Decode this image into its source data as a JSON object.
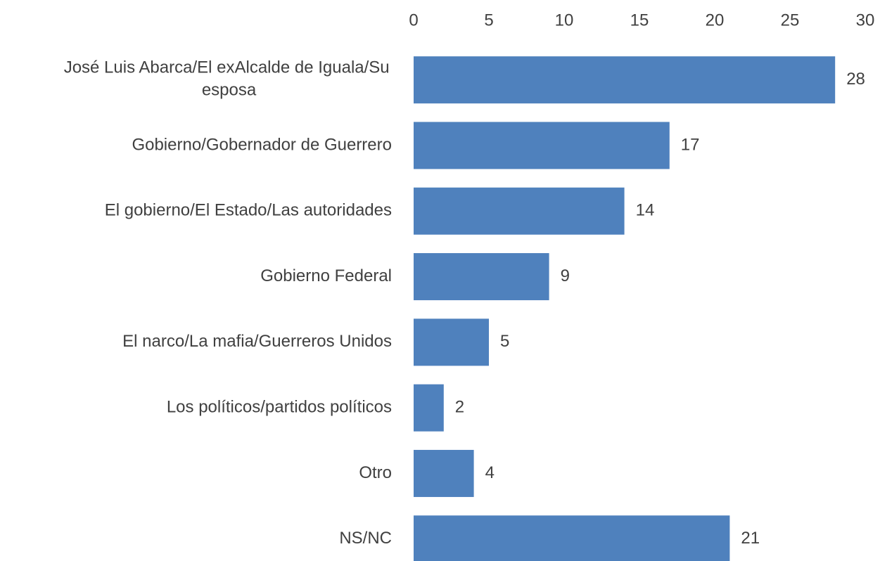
{
  "chart_data": {
    "type": "hbar",
    "categories": [
      "José Luis Abarca/El exAlcalde de Iguala/Su esposa",
      "Gobierno/Gobernador de Guerrero",
      "El gobierno/El Estado/Las autoridades",
      "Gobierno Federal",
      "El narco/La mafia/Guerreros Unidos",
      "Los políticos/partidos políticos",
      "Otro",
      "NS/NC"
    ],
    "values": [
      28,
      17,
      14,
      9,
      5,
      2,
      4,
      21
    ],
    "color": "#4f81bd",
    "xlim": [
      0,
      30
    ],
    "xticks": [
      0,
      5,
      10,
      15,
      20,
      25,
      30
    ],
    "grid": false
  }
}
